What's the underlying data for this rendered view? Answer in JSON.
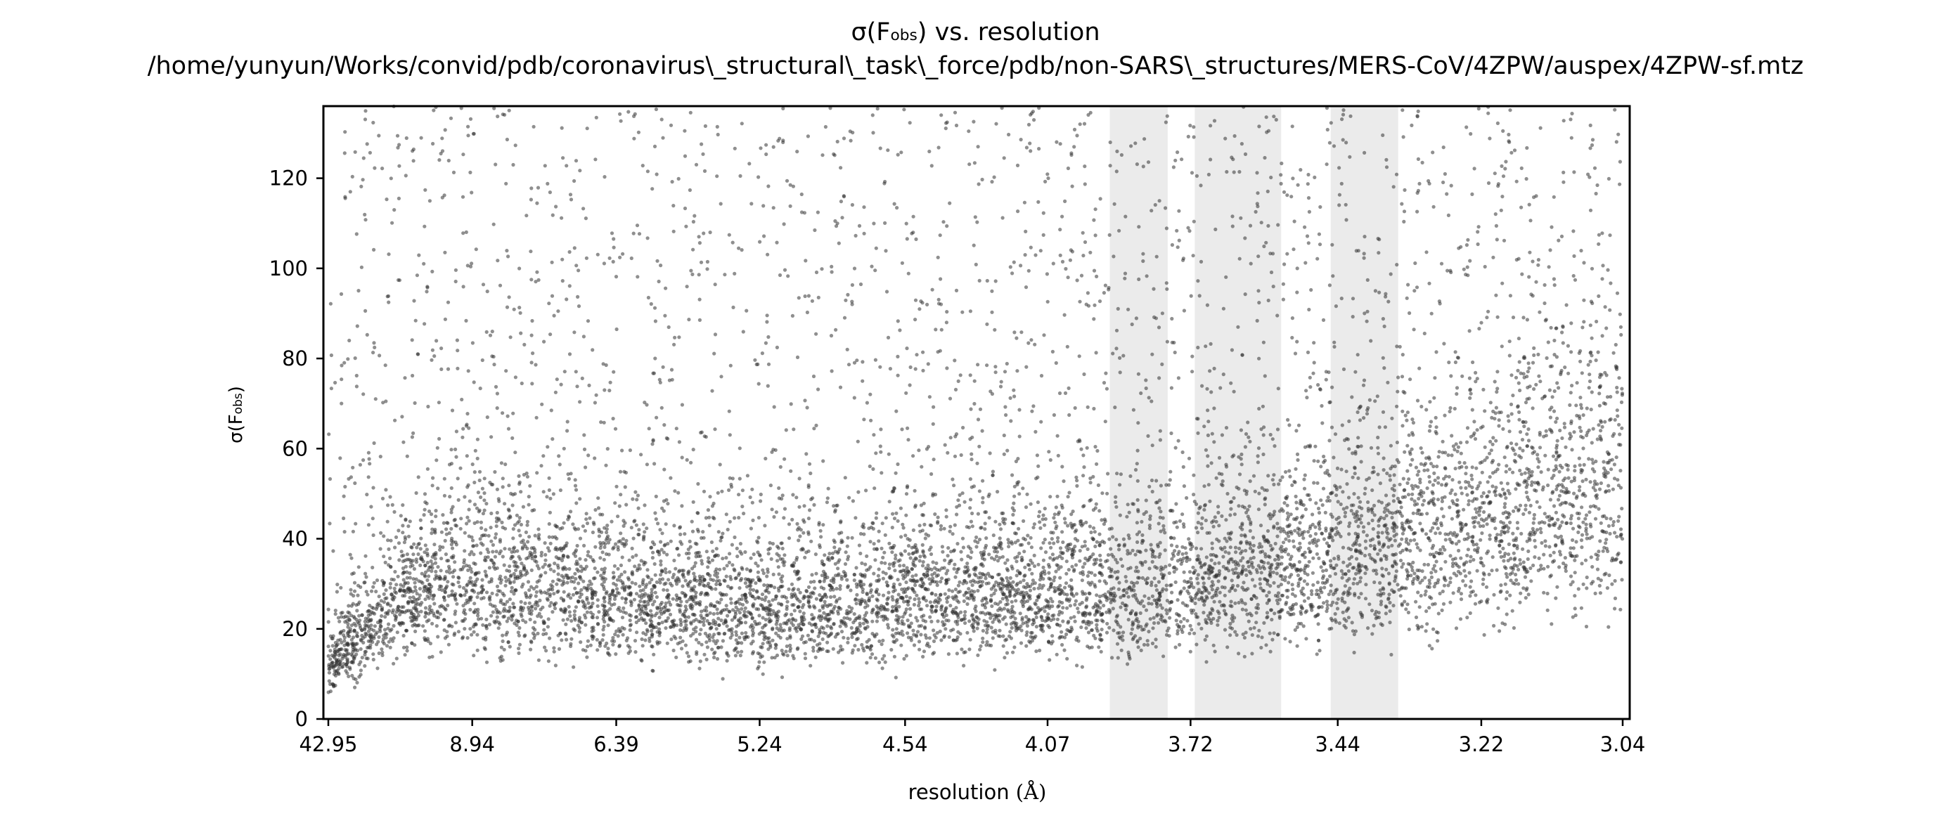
{
  "chart_data": {
    "type": "scatter",
    "title": {
      "line1_symbol": "σ(F",
      "line1_subscript": "obs",
      "line1_suffix": ") vs. resolution",
      "line2": "/home/yunyun/Works/convid/pdb/coronavirus\\_structural\\_task\\_force/pdb/non-SARS\\_structures/MERS-CoV/4ZPW/auspex/4ZPW-sf.mtz"
    },
    "xlabel": {
      "text": "resolution",
      "unit": "(Å)"
    },
    "ylabel": {
      "symbol": "σ(F",
      "subscript": "obs",
      "close": ")"
    },
    "x_scale": "reciprocal-square (1/d²)",
    "xtick_labels": [
      "42.95",
      "8.94",
      "6.39",
      "5.24",
      "4.54",
      "4.07",
      "3.72",
      "3.44",
      "3.22",
      "3.04"
    ],
    "xtick_values": [
      42.95,
      8.94,
      6.39,
      5.24,
      4.54,
      4.07,
      3.72,
      3.44,
      3.22,
      3.04
    ],
    "xlim": [
      42.95,
      3.04
    ],
    "yticks": [
      0,
      20,
      40,
      60,
      80,
      100,
      120
    ],
    "ylim": [
      0,
      136
    ],
    "grid": false,
    "legend": "none",
    "point_color": "#333333",
    "highlight_color": "#ebebeb",
    "highlight_bands": [
      [
        3.906,
        3.77
      ],
      [
        3.711,
        3.54
      ],
      [
        3.452,
        3.342
      ]
    ],
    "trend": {
      "x": [
        42.95,
        12.0,
        8.94,
        6.39,
        5.24,
        4.54,
        4.07,
        3.72,
        3.44,
        3.22,
        3.04
      ],
      "y_center": [
        12,
        28,
        32,
        28,
        24,
        27,
        29,
        31,
        35,
        45,
        52
      ]
    },
    "n_points": 9000
  }
}
